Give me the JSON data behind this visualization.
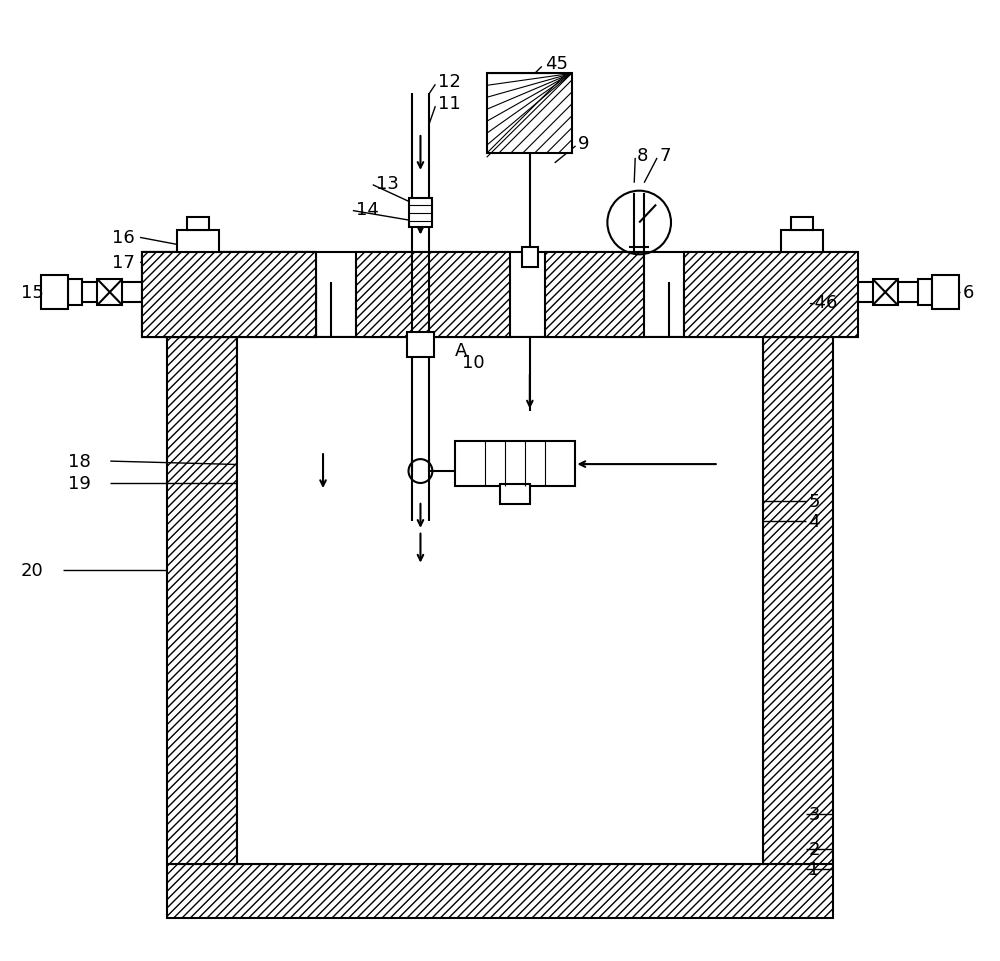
{
  "background_color": "#ffffff",
  "fig_width": 10.0,
  "fig_height": 9.62,
  "dpi": 100
}
